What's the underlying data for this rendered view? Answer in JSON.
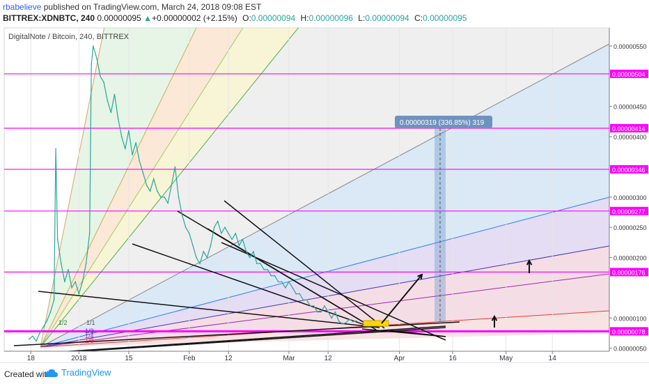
{
  "header": {
    "author": "rbabelieve",
    "published": "published on TradingView.com, March 24, 2018 09:08 EST",
    "symbol": "BITTREX:XDNBTC, 240",
    "price": "0.00000095",
    "change_arrow": "▲",
    "change": "+0.00000002 (+2.15%)",
    "o_label": "O:",
    "o_value": "0.00000094",
    "h_label": "H:",
    "h_value": "0.00000096",
    "l_label": "L:",
    "l_value": "0.00000094",
    "c_label": "C:",
    "c_value": "0.00000095"
  },
  "footer": {
    "created_with": "Created with",
    "brand": "TradingView"
  },
  "chart_data": {
    "type": "line",
    "title": "DigitalNote / Bitcoin, 240, BITTREX",
    "price_axis_ticks": [
      "0.00000550",
      "0.00000450",
      "0.00000400",
      "0.00000300",
      "0.00000250",
      "0.00000200",
      "0.00000100",
      "0.00000050"
    ],
    "time_axis_labels": [
      {
        "label": "18",
        "day": -13.5
      },
      {
        "label": "2018",
        "day": 0
      },
      {
        "label": "15",
        "day": 14
      },
      {
        "label": "Feb",
        "day": 31
      },
      {
        "label": "12",
        "day": 42
      },
      {
        "label": "Mar",
        "day": 59
      },
      {
        "label": "12",
        "day": 70
      },
      {
        "label": "Apr",
        "day": 90
      },
      {
        "label": "16",
        "day": 105
      },
      {
        "label": "May",
        "day": 120
      },
      {
        "label": "14",
        "day": 133
      }
    ],
    "ylim": [
      4.5e-07,
      5.8e-06
    ],
    "xlim": [
      -21,
      149
    ],
    "horizontal_levels": [
      {
        "value": 5.04e-06,
        "label": "0.00000504",
        "color": "#ff00ff"
      },
      {
        "value": 4.14e-06,
        "label": "0.00000414",
        "color": "#ff00ff"
      },
      {
        "value": 3.46e-06,
        "label": "0.00000346",
        "color": "#ff00ff"
      },
      {
        "value": 2.77e-06,
        "label": "0.00000277",
        "color": "#ff00ff"
      },
      {
        "value": 1.76e-06,
        "label": "0.00000176",
        "color": "#ff00ff"
      },
      {
        "value": 7.8e-07,
        "label": "0.00000078",
        "color": "#ff00ff"
      }
    ],
    "measure_label": "0.00000319 (336.85%) 319",
    "fan_labels": [
      "1/1",
      "1/2",
      "1/3",
      "1/4",
      "1/8"
    ],
    "price_series": {
      "name": "",
      "points": [
        [
          -14,
          6.5e-07
        ],
        [
          -13,
          7e-07
        ],
        [
          -12,
          6.2e-07
        ],
        [
          -11,
          7.5e-07
        ],
        [
          -10,
          8.5e-07
        ],
        [
          -9,
          9.5e-07
        ],
        [
          -8,
          1.1e-06
        ],
        [
          -7,
          1.3e-06
        ],
        [
          -6.5,
          3.8e-06
        ],
        [
          -6,
          2.3e-06
        ],
        [
          -5,
          1.9e-06
        ],
        [
          -4,
          1.6e-06
        ],
        [
          -3,
          1.8e-06
        ],
        [
          -2,
          1.5e-06
        ],
        [
          -1,
          1.6e-06
        ],
        [
          0,
          1.4e-06
        ],
        [
          1,
          1.6e-06
        ],
        [
          2,
          1.9e-06
        ],
        [
          3,
          2.4e-06
        ],
        [
          3.5,
          5.2e-06
        ],
        [
          4,
          5.5e-06
        ],
        [
          5,
          5.3e-06
        ],
        [
          6,
          5e-06
        ],
        [
          7,
          4.9e-06
        ],
        [
          8,
          4.6e-06
        ],
        [
          9,
          4.4e-06
        ],
        [
          10,
          4.7e-06
        ],
        [
          11,
          4.3e-06
        ],
        [
          12,
          4e-06
        ],
        [
          13,
          3.8e-06
        ],
        [
          14,
          4.1e-06
        ],
        [
          15,
          3.7e-06
        ],
        [
          16,
          3.9e-06
        ],
        [
          17,
          3.6e-06
        ],
        [
          18,
          3.4e-06
        ],
        [
          19,
          3.2e-06
        ],
        [
          20,
          3.1e-06
        ],
        [
          21,
          3.3e-06
        ],
        [
          22,
          3.1e-06
        ],
        [
          23,
          3e-06
        ],
        [
          24,
          3e-06
        ],
        [
          25,
          2.9e-06
        ],
        [
          26,
          3.2e-06
        ],
        [
          27,
          3.5e-06
        ],
        [
          28,
          3e-06
        ],
        [
          29,
          2.7e-06
        ],
        [
          30,
          2.5e-06
        ],
        [
          31,
          2.4e-06
        ],
        [
          32,
          2.2e-06
        ],
        [
          33,
          2e-06
        ],
        [
          34,
          1.9e-06
        ],
        [
          35,
          2.1e-06
        ],
        [
          36,
          2e-06
        ],
        [
          37,
          2.2e-06
        ],
        [
          38,
          2.5e-06
        ],
        [
          39,
          2.6e-06
        ],
        [
          40,
          2.4e-06
        ],
        [
          41,
          2.5e-06
        ],
        [
          42,
          2.4e-06
        ],
        [
          43,
          2.3e-06
        ],
        [
          44,
          2.4e-06
        ],
        [
          45,
          2.2e-06
        ],
        [
          46,
          2.3e-06
        ],
        [
          47,
          2.1e-06
        ],
        [
          48,
          2e-06
        ],
        [
          49,
          2.1e-06
        ],
        [
          50,
          1.9e-06
        ],
        [
          51,
          1.9e-06
        ],
        [
          52,
          1.8e-06
        ],
        [
          53,
          1.8e-06
        ],
        [
          54,
          1.7e-06
        ],
        [
          55,
          1.7e-06
        ],
        [
          56,
          1.6e-06
        ],
        [
          57,
          1.6e-06
        ],
        [
          58,
          1.5e-06
        ],
        [
          59,
          1.6e-06
        ],
        [
          60,
          1.5e-06
        ],
        [
          61,
          1.4e-06
        ],
        [
          62,
          1.4e-06
        ],
        [
          63,
          1.3e-06
        ],
        [
          64,
          1.3e-06
        ],
        [
          65,
          1.2e-06
        ],
        [
          66,
          1.2e-06
        ],
        [
          67,
          1.1e-06
        ],
        [
          68,
          1.1e-06
        ],
        [
          69,
          1.2e-06
        ],
        [
          70,
          1.1e-06
        ],
        [
          71,
          1e-06
        ],
        [
          72,
          1.1e-06
        ],
        [
          73,
          9.5e-07
        ],
        [
          74,
          9e-07
        ],
        [
          75,
          9.2e-07
        ],
        [
          76,
          9.8e-07
        ],
        [
          77,
          9.4e-07
        ],
        [
          78,
          9.5e-07
        ]
      ]
    },
    "colors": {
      "price_line": "#26a69a",
      "magenta": "#ff00ff",
      "measure_box": "#5b8ec6",
      "fan_fill_blue": "#cfe2f3",
      "fan_fill_violet": "#dcd2f0",
      "fan_fill_pink": "#f2d2dc",
      "fan_fill_green": "#d6efd6",
      "fan_fill_yellow": "#f5f0c8",
      "fan_fill_orange": "#f9e0c8"
    }
  }
}
